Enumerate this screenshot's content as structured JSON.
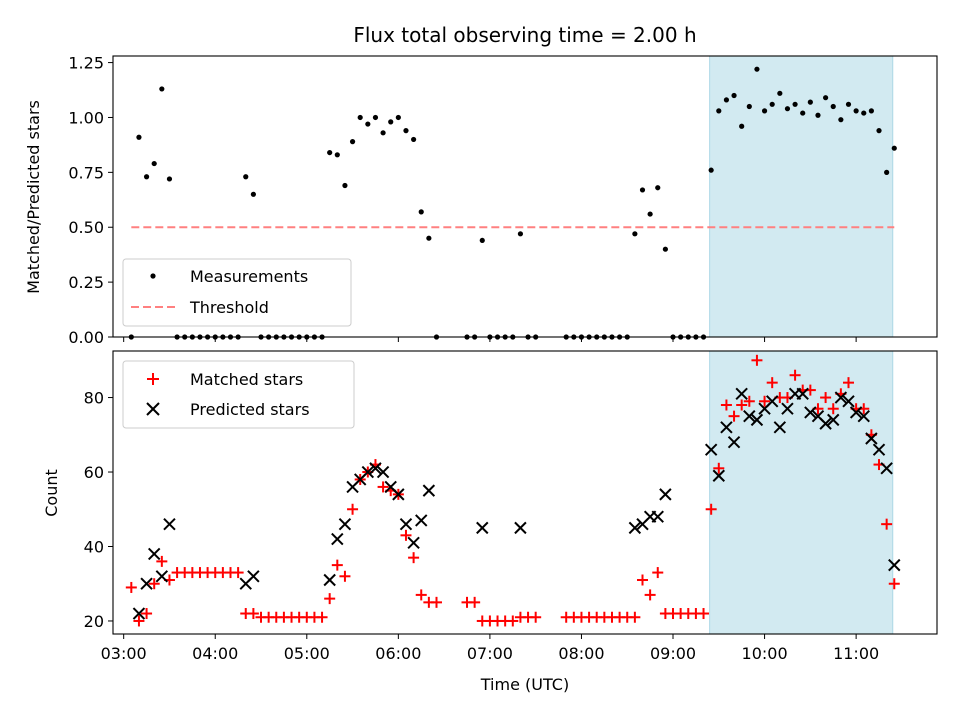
{
  "chart_data": [
    {
      "type": "scatter",
      "title": "Flux total observing time = 2.00 h",
      "xlabel": "",
      "ylabel": "Matched/Predicted stars",
      "ylim": [
        0,
        1.28
      ],
      "xlim": [
        "02:53",
        "11:53"
      ],
      "yticks": [
        "0.00",
        "0.25",
        "0.50",
        "0.75",
        "1.00",
        "1.25"
      ],
      "highlight_span": [
        "09:24",
        "11:24"
      ],
      "highlight_color": "#add8e6",
      "legend_position": "lower-left",
      "series": [
        {
          "name": "Measurements",
          "marker": "dot",
          "color": "#000000",
          "points": [
            [
              "03:05",
              0.0
            ],
            [
              "03:10",
              0.91
            ],
            [
              "03:15",
              0.73
            ],
            [
              "03:20",
              0.79
            ],
            [
              "03:25",
              1.13
            ],
            [
              "03:30",
              0.72
            ],
            [
              "03:35",
              0.0
            ],
            [
              "03:40",
              0.0
            ],
            [
              "03:45",
              0.0
            ],
            [
              "03:50",
              0.0
            ],
            [
              "03:55",
              0.0
            ],
            [
              "04:00",
              0.0
            ],
            [
              "04:05",
              0.0
            ],
            [
              "04:10",
              0.0
            ],
            [
              "04:15",
              0.0
            ],
            [
              "04:20",
              0.73
            ],
            [
              "04:25",
              0.65
            ],
            [
              "04:30",
              0.0
            ],
            [
              "04:35",
              0.0
            ],
            [
              "04:40",
              0.0
            ],
            [
              "04:45",
              0.0
            ],
            [
              "04:50",
              0.0
            ],
            [
              "04:55",
              0.0
            ],
            [
              "05:00",
              0.0
            ],
            [
              "05:05",
              0.0
            ],
            [
              "05:10",
              0.0
            ],
            [
              "05:15",
              0.84
            ],
            [
              "05:20",
              0.83
            ],
            [
              "05:25",
              0.69
            ],
            [
              "05:30",
              0.89
            ],
            [
              "05:35",
              1.0
            ],
            [
              "05:40",
              0.97
            ],
            [
              "05:45",
              1.0
            ],
            [
              "05:50",
              0.93
            ],
            [
              "05:55",
              0.98
            ],
            [
              "06:00",
              1.0
            ],
            [
              "06:05",
              0.94
            ],
            [
              "06:10",
              0.9
            ],
            [
              "06:15",
              0.57
            ],
            [
              "06:20",
              0.45
            ],
            [
              "06:25",
              0.0
            ],
            [
              "06:45",
              0.0
            ],
            [
              "06:50",
              0.0
            ],
            [
              "06:55",
              0.44
            ],
            [
              "07:00",
              0.0
            ],
            [
              "07:05",
              0.0
            ],
            [
              "07:10",
              0.0
            ],
            [
              "07:15",
              0.0
            ],
            [
              "07:20",
              0.47
            ],
            [
              "07:25",
              0.0
            ],
            [
              "07:30",
              0.0
            ],
            [
              "07:50",
              0.0
            ],
            [
              "07:55",
              0.0
            ],
            [
              "08:00",
              0.0
            ],
            [
              "08:05",
              0.0
            ],
            [
              "08:10",
              0.0
            ],
            [
              "08:15",
              0.0
            ],
            [
              "08:20",
              0.0
            ],
            [
              "08:25",
              0.0
            ],
            [
              "08:30",
              0.0
            ],
            [
              "08:35",
              0.47
            ],
            [
              "08:40",
              0.67
            ],
            [
              "08:45",
              0.56
            ],
            [
              "08:50",
              0.68
            ],
            [
              "08:55",
              0.4
            ],
            [
              "09:00",
              0.0
            ],
            [
              "09:05",
              0.0
            ],
            [
              "09:10",
              0.0
            ],
            [
              "09:15",
              0.0
            ],
            [
              "09:20",
              0.0
            ],
            [
              "09:25",
              0.76
            ],
            [
              "09:30",
              1.03
            ],
            [
              "09:35",
              1.08
            ],
            [
              "09:40",
              1.1
            ],
            [
              "09:45",
              0.96
            ],
            [
              "09:50",
              1.05
            ],
            [
              "09:55",
              1.22
            ],
            [
              "10:00",
              1.03
            ],
            [
              "10:05",
              1.06
            ],
            [
              "10:10",
              1.11
            ],
            [
              "10:15",
              1.04
            ],
            [
              "10:20",
              1.06
            ],
            [
              "10:25",
              1.02
            ],
            [
              "10:30",
              1.07
            ],
            [
              "10:35",
              1.01
            ],
            [
              "10:40",
              1.09
            ],
            [
              "10:45",
              1.05
            ],
            [
              "10:50",
              0.99
            ],
            [
              "10:55",
              1.06
            ],
            [
              "11:00",
              1.03
            ],
            [
              "11:05",
              1.02
            ],
            [
              "11:10",
              1.03
            ],
            [
              "11:15",
              0.94
            ],
            [
              "11:20",
              0.75
            ],
            [
              "11:25",
              0.86
            ]
          ]
        },
        {
          "name": "Threshold",
          "marker": "dashed-line",
          "color": "#ff8080",
          "points": [
            [
              "03:05",
              0.5
            ],
            [
              "11:25",
              0.5
            ]
          ]
        }
      ]
    },
    {
      "type": "scatter",
      "title": "",
      "xlabel": "Time (UTC)",
      "ylabel": "Count",
      "ylim": [
        16.5,
        92.5
      ],
      "xlim": [
        "02:53",
        "11:53"
      ],
      "xticks": [
        "03:00",
        "04:00",
        "05:00",
        "06:00",
        "07:00",
        "08:00",
        "09:00",
        "10:00",
        "11:00"
      ],
      "yticks": [
        "20",
        "40",
        "60",
        "80"
      ],
      "highlight_span": [
        "09:24",
        "11:24"
      ],
      "highlight_color": "#add8e6",
      "legend_position": "upper-left",
      "series": [
        {
          "name": "Matched stars",
          "marker": "plus",
          "color": "#ff0000",
          "points": [
            [
              "03:05",
              29
            ],
            [
              "03:10",
              20
            ],
            [
              "03:15",
              22
            ],
            [
              "03:20",
              30
            ],
            [
              "03:25",
              36
            ],
            [
              "03:30",
              31
            ],
            [
              "03:35",
              33
            ],
            [
              "03:40",
              33
            ],
            [
              "03:45",
              33
            ],
            [
              "03:50",
              33
            ],
            [
              "03:55",
              33
            ],
            [
              "04:00",
              33
            ],
            [
              "04:05",
              33
            ],
            [
              "04:10",
              33
            ],
            [
              "04:15",
              33
            ],
            [
              "04:20",
              22
            ],
            [
              "04:25",
              22
            ],
            [
              "04:30",
              21
            ],
            [
              "04:35",
              21
            ],
            [
              "04:40",
              21
            ],
            [
              "04:45",
              21
            ],
            [
              "04:50",
              21
            ],
            [
              "04:55",
              21
            ],
            [
              "05:00",
              21
            ],
            [
              "05:05",
              21
            ],
            [
              "05:10",
              21
            ],
            [
              "05:15",
              26
            ],
            [
              "05:20",
              35
            ],
            [
              "05:25",
              32
            ],
            [
              "05:30",
              50
            ],
            [
              "05:35",
              58
            ],
            [
              "05:40",
              60
            ],
            [
              "05:45",
              62
            ],
            [
              "05:50",
              56
            ],
            [
              "05:55",
              55
            ],
            [
              "06:00",
              54
            ],
            [
              "06:05",
              43
            ],
            [
              "06:10",
              37
            ],
            [
              "06:15",
              27
            ],
            [
              "06:20",
              25
            ],
            [
              "06:25",
              25
            ],
            [
              "06:45",
              25
            ],
            [
              "06:50",
              25
            ],
            [
              "06:55",
              20
            ],
            [
              "07:00",
              20
            ],
            [
              "07:05",
              20
            ],
            [
              "07:10",
              20
            ],
            [
              "07:15",
              20
            ],
            [
              "07:20",
              21
            ],
            [
              "07:25",
              21
            ],
            [
              "07:30",
              21
            ],
            [
              "07:50",
              21
            ],
            [
              "07:55",
              21
            ],
            [
              "08:00",
              21
            ],
            [
              "08:05",
              21
            ],
            [
              "08:10",
              21
            ],
            [
              "08:15",
              21
            ],
            [
              "08:20",
              21
            ],
            [
              "08:25",
              21
            ],
            [
              "08:30",
              21
            ],
            [
              "08:35",
              21
            ],
            [
              "08:40",
              31
            ],
            [
              "08:45",
              27
            ],
            [
              "08:50",
              33
            ],
            [
              "08:55",
              22
            ],
            [
              "09:00",
              22
            ],
            [
              "09:05",
              22
            ],
            [
              "09:10",
              22
            ],
            [
              "09:15",
              22
            ],
            [
              "09:20",
              22
            ],
            [
              "09:25",
              50
            ],
            [
              "09:30",
              61
            ],
            [
              "09:35",
              78
            ],
            [
              "09:40",
              75
            ],
            [
              "09:45",
              78
            ],
            [
              "09:50",
              79
            ],
            [
              "09:55",
              90
            ],
            [
              "10:00",
              79
            ],
            [
              "10:05",
              84
            ],
            [
              "10:10",
              80
            ],
            [
              "10:15",
              80
            ],
            [
              "10:20",
              86
            ],
            [
              "10:25",
              82
            ],
            [
              "10:30",
              82
            ],
            [
              "10:35",
              77
            ],
            [
              "10:40",
              80
            ],
            [
              "10:45",
              77
            ],
            [
              "10:50",
              81
            ],
            [
              "10:55",
              84
            ],
            [
              "11:00",
              77
            ],
            [
              "11:05",
              77
            ],
            [
              "11:10",
              70
            ],
            [
              "11:15",
              62
            ],
            [
              "11:20",
              46
            ],
            [
              "11:25",
              30
            ]
          ]
        },
        {
          "name": "Predicted stars",
          "marker": "x",
          "color": "#000000",
          "points": [
            [
              "03:10",
              22
            ],
            [
              "03:15",
              30
            ],
            [
              "03:20",
              38
            ],
            [
              "03:25",
              32
            ],
            [
              "03:30",
              46
            ],
            [
              "04:20",
              30
            ],
            [
              "04:25",
              32
            ],
            [
              "05:15",
              31
            ],
            [
              "05:20",
              42
            ],
            [
              "05:25",
              46
            ],
            [
              "05:30",
              56
            ],
            [
              "05:35",
              58
            ],
            [
              "05:40",
              60
            ],
            [
              "05:45",
              61
            ],
            [
              "05:50",
              60
            ],
            [
              "05:55",
              56
            ],
            [
              "06:00",
              54
            ],
            [
              "06:05",
              46
            ],
            [
              "06:10",
              41
            ],
            [
              "06:15",
              47
            ],
            [
              "06:20",
              55
            ],
            [
              "06:55",
              45
            ],
            [
              "07:20",
              45
            ],
            [
              "08:35",
              45
            ],
            [
              "08:40",
              46
            ],
            [
              "08:45",
              48
            ],
            [
              "08:50",
              48
            ],
            [
              "08:55",
              54
            ],
            [
              "09:25",
              66
            ],
            [
              "09:30",
              59
            ],
            [
              "09:35",
              72
            ],
            [
              "09:40",
              68
            ],
            [
              "09:45",
              81
            ],
            [
              "09:50",
              75
            ],
            [
              "09:55",
              74
            ],
            [
              "10:00",
              77
            ],
            [
              "10:05",
              79
            ],
            [
              "10:10",
              72
            ],
            [
              "10:15",
              77
            ],
            [
              "10:20",
              81
            ],
            [
              "10:25",
              81
            ],
            [
              "10:30",
              76
            ],
            [
              "10:35",
              75
            ],
            [
              "10:40",
              73
            ],
            [
              "10:45",
              74
            ],
            [
              "10:50",
              80
            ],
            [
              "10:55",
              79
            ],
            [
              "11:00",
              76
            ],
            [
              "11:05",
              75
            ],
            [
              "11:10",
              69
            ],
            [
              "11:15",
              66
            ],
            [
              "11:20",
              61
            ],
            [
              "11:25",
              35
            ]
          ]
        }
      ]
    }
  ]
}
